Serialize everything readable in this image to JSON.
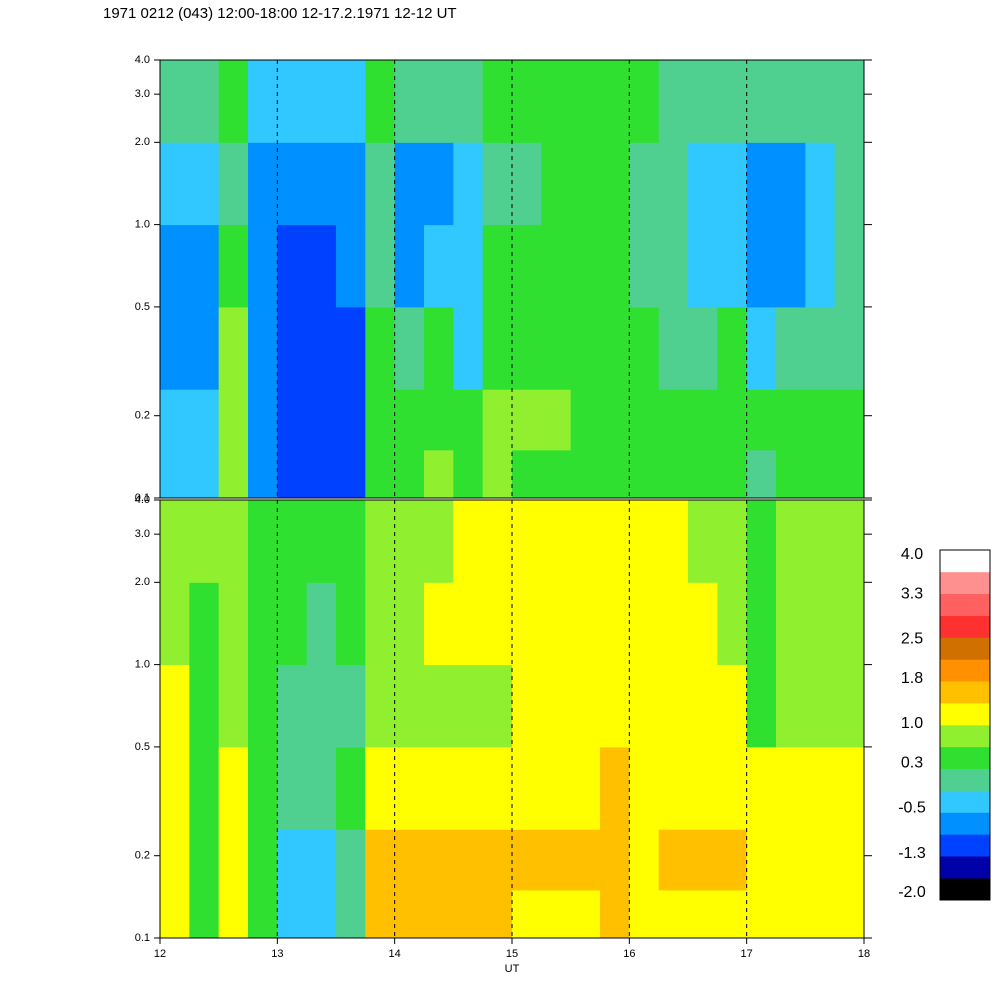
{
  "chart_data": {
    "type": "heatmap",
    "title": "1971 0212 (043) 12:00-18:00 12-17.2.1971  12-12 UT",
    "xlabel": "UT",
    "xlim": [
      12,
      18
    ],
    "xticks": [
      12,
      13,
      14,
      15,
      16,
      17,
      18
    ],
    "grid": true,
    "ylim": [
      0.1,
      4
    ],
    "log_y": true,
    "yticks": [
      0.1,
      0.2,
      0.5,
      {
        "value": 1,
        "label": "1.0"
      },
      {
        "value": 2,
        "label": "2.0"
      },
      {
        "value": 3,
        "label": "3.0"
      },
      {
        "value": 4,
        "label": "4.0"
      }
    ],
    "x": [
      12,
      12.25,
      12.5,
      12.75,
      13,
      13.25,
      13.5,
      13.75,
      14,
      14.25,
      14.5,
      14.75,
      15,
      15.25,
      15.5,
      15.75,
      16,
      16.25,
      16.5,
      16.75,
      17,
      17.25,
      17.5,
      17.75
    ],
    "ybins": [
      0.1,
      0.15,
      0.25,
      0.5,
      1,
      2,
      4
    ],
    "panels": [
      {
        "values": [
          [
            -0.3,
            -0.5,
            0.8,
            -0.6,
            -1.2,
            -1.2,
            -1.0,
            0.5,
            0.6,
            0.7,
            0.4,
            0.7,
            0.6,
            0.5,
            0.4,
            0.5,
            0.3,
            0.3,
            0.3,
            0.4,
            0.2,
            0.3,
            0.4,
            0.3
          ],
          [
            -0.4,
            -0.5,
            0.9,
            -0.6,
            -1.2,
            -1.2,
            -1.0,
            0.6,
            0.5,
            0.6,
            0.3,
            0.8,
            0.7,
            0.7,
            0.6,
            0.6,
            0.4,
            0.4,
            0.3,
            0.5,
            0.4,
            0.5,
            0.5,
            0.4
          ],
          [
            -0.6,
            -0.6,
            0.7,
            -0.8,
            -1.1,
            -1.1,
            -1.0,
            0.3,
            0.2,
            0.3,
            -0.2,
            0.5,
            0.6,
            0.6,
            0.5,
            0.5,
            0.3,
            0.2,
            0.2,
            0.3,
            -0.5,
            0.0,
            0.0,
            0.2
          ],
          [
            -0.6,
            -0.6,
            0.5,
            -0.8,
            -1.0,
            -0.9,
            -0.8,
            0.2,
            -0.6,
            -0.5,
            -0.4,
            0.3,
            0.3,
            0.4,
            0.4,
            0.5,
            0.2,
            0.1,
            -0.3,
            -0.2,
            -0.8,
            -0.6,
            -0.5,
            0.0
          ],
          [
            -0.5,
            -0.5,
            0.2,
            -0.6,
            -0.8,
            -0.8,
            -0.6,
            0.1,
            -0.8,
            -0.6,
            -0.3,
            0.2,
            0.2,
            0.3,
            0.3,
            0.4,
            0.2,
            0.1,
            -0.4,
            -0.4,
            -0.8,
            -0.6,
            -0.5,
            -0.1
          ],
          [
            0.0,
            0.1,
            0.3,
            -0.2,
            -0.3,
            -0.3,
            -0.2,
            0.3,
            0.0,
            0.1,
            0.1,
            0.3,
            0.3,
            0.3,
            0.3,
            0.3,
            0.3,
            0.2,
            0.2,
            0.1,
            0.0,
            0.1,
            0.1,
            0.2
          ]
        ]
      },
      {
        "values": [
          [
            1.3,
            0.5,
            1.2,
            0.5,
            -0.2,
            -0.3,
            0.0,
            1.4,
            1.4,
            1.4,
            1.5,
            1.6,
            1.3,
            1.3,
            1.3,
            1.4,
            1.2,
            1.3,
            1.3,
            1.3,
            1.2,
            1.2,
            1.3,
            1.2
          ],
          [
            1.3,
            0.6,
            1.2,
            0.6,
            -0.2,
            -0.2,
            0.1,
            1.4,
            1.4,
            1.4,
            1.4,
            1.5,
            1.4,
            1.4,
            1.4,
            1.5,
            1.3,
            1.4,
            1.4,
            1.4,
            1.2,
            1.3,
            1.3,
            1.2
          ],
          [
            1.2,
            0.6,
            1.1,
            0.5,
            0.0,
            0.0,
            0.3,
            1.3,
            1.2,
            1.3,
            1.3,
            1.3,
            1.3,
            1.3,
            1.3,
            1.4,
            1.3,
            1.3,
            1.3,
            1.3,
            1.0,
            1.1,
            1.2,
            1.1
          ],
          [
            1.0,
            0.5,
            0.8,
            0.4,
            0.1,
            0.0,
            0.2,
            0.8,
            0.8,
            0.9,
            0.8,
            0.9,
            1.0,
            1.1,
            1.1,
            1.3,
            1.1,
            1.1,
            1.0,
            1.0,
            0.3,
            0.8,
            0.9,
            0.8
          ],
          [
            0.9,
            0.6,
            0.8,
            0.5,
            0.3,
            0.2,
            0.4,
            0.8,
            0.9,
            1.0,
            1.0,
            1.1,
            1.1,
            1.2,
            1.2,
            1.2,
            1.1,
            1.1,
            1.0,
            0.9,
            0.3,
            0.8,
            0.9,
            0.8
          ],
          [
            0.8,
            0.7,
            0.8,
            0.6,
            0.5,
            0.5,
            0.6,
            0.8,
            0.9,
            0.9,
            1.0,
            1.0,
            1.0,
            1.1,
            1.1,
            1.1,
            1.0,
            1.0,
            0.9,
            0.9,
            0.6,
            0.8,
            0.8,
            0.8
          ]
        ]
      }
    ],
    "colorbar": {
      "clim": [
        -2,
        4
      ],
      "colors": [
        "#000000",
        "#0000a8",
        "#0040ff",
        "#0090ff",
        "#30c8ff",
        "#50d090",
        "#30e030",
        "#90f030",
        "#ffff00",
        "#ffc000",
        "#ff9000",
        "#d07000",
        "#ff3030",
        "#ff6060",
        "#ff9090",
        "#ffffff"
      ],
      "ticks": [
        {
          "value": -2,
          "label": "-2.0"
        },
        -1.3,
        -0.5,
        0.3,
        {
          "value": 1,
          "label": "1.0"
        },
        1.8,
        2.5,
        3.3,
        {
          "value": 4,
          "label": "4.0"
        }
      ]
    }
  }
}
